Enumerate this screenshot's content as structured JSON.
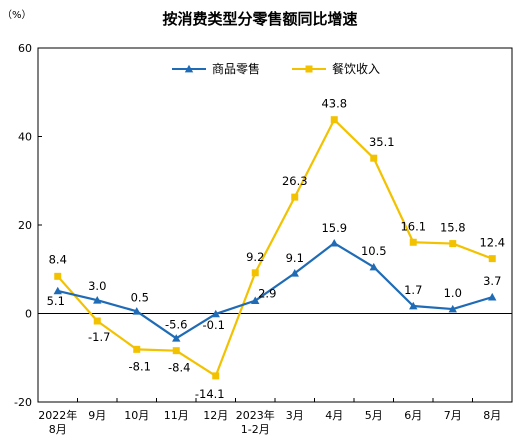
{
  "chart_data": {
    "type": "line",
    "title": "按消费类型分零售额同比增速",
    "unit_label": "（%）",
    "categories": [
      "2022年\n8月",
      "9月",
      "10月",
      "11月",
      "12月",
      "2023年\n1-2月",
      "3月",
      "4月",
      "5月",
      "6月",
      "7月",
      "8月"
    ],
    "ylim": [
      -20,
      60
    ],
    "yticks": [
      -20,
      0,
      20,
      40,
      60
    ],
    "grid": false,
    "legend_position": "top-center",
    "series": [
      {
        "name": "商品零售",
        "color": "#1f6bb5",
        "marker": "triangle",
        "values": [
          5.1,
          3.0,
          0.5,
          -5.6,
          -0.1,
          2.9,
          9.1,
          15.9,
          10.5,
          1.7,
          1.0,
          3.7
        ],
        "labels": [
          "5.1",
          "3.0",
          "0.5",
          "-5.6",
          "-0.1",
          "2.9",
          "9.1",
          "15.9",
          "10.5",
          "1.7",
          "1.0",
          "3.7"
        ]
      },
      {
        "name": "餐饮收入",
        "color": "#f2c200",
        "marker": "square",
        "values": [
          8.4,
          -1.7,
          -8.1,
          -8.4,
          -14.1,
          9.2,
          26.3,
          43.8,
          35.1,
          16.1,
          15.8,
          12.4
        ],
        "labels": [
          "8.4",
          "-1.7",
          "-8.1",
          "-8.4",
          "-14.1",
          "9.2",
          "26.3",
          "43.8",
          "35.1",
          "16.1",
          "15.8",
          "12.4"
        ]
      }
    ]
  }
}
